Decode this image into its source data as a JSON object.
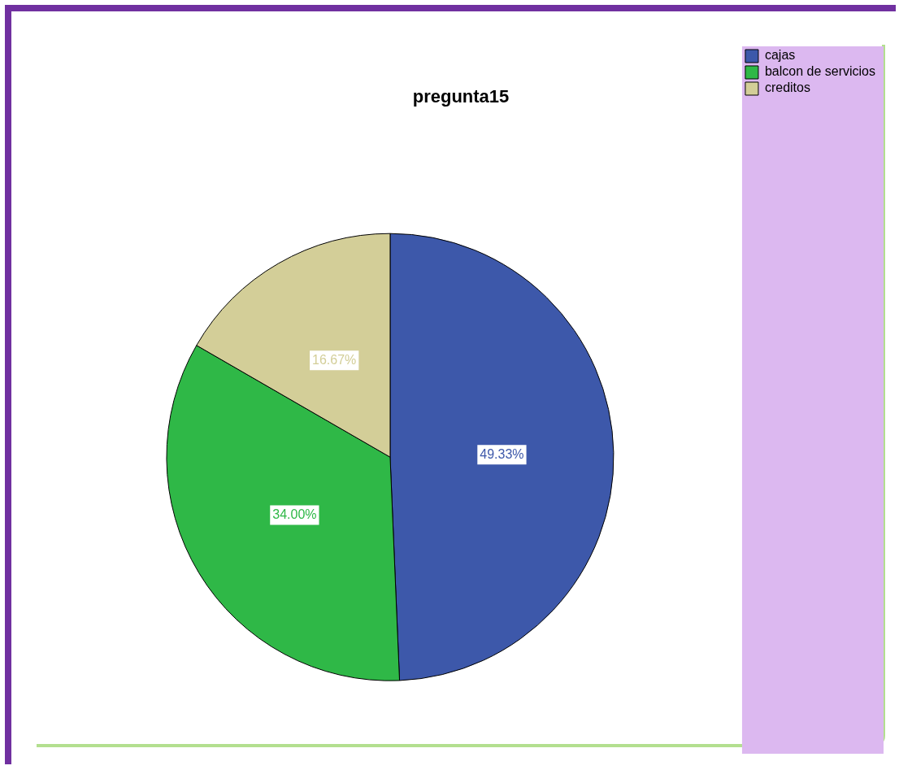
{
  "chart_data": {
    "type": "pie",
    "title": "pregunta15",
    "categories": [
      "cajas",
      "balcon de servicios",
      "creditos"
    ],
    "values": [
      49.33,
      34.0,
      16.67
    ],
    "colors": [
      "#3d58aa",
      "#2fb847",
      "#d3ce98"
    ],
    "value_labels": [
      "49.33%",
      "34.00%",
      "16.67%"
    ],
    "legend": "top right"
  }
}
